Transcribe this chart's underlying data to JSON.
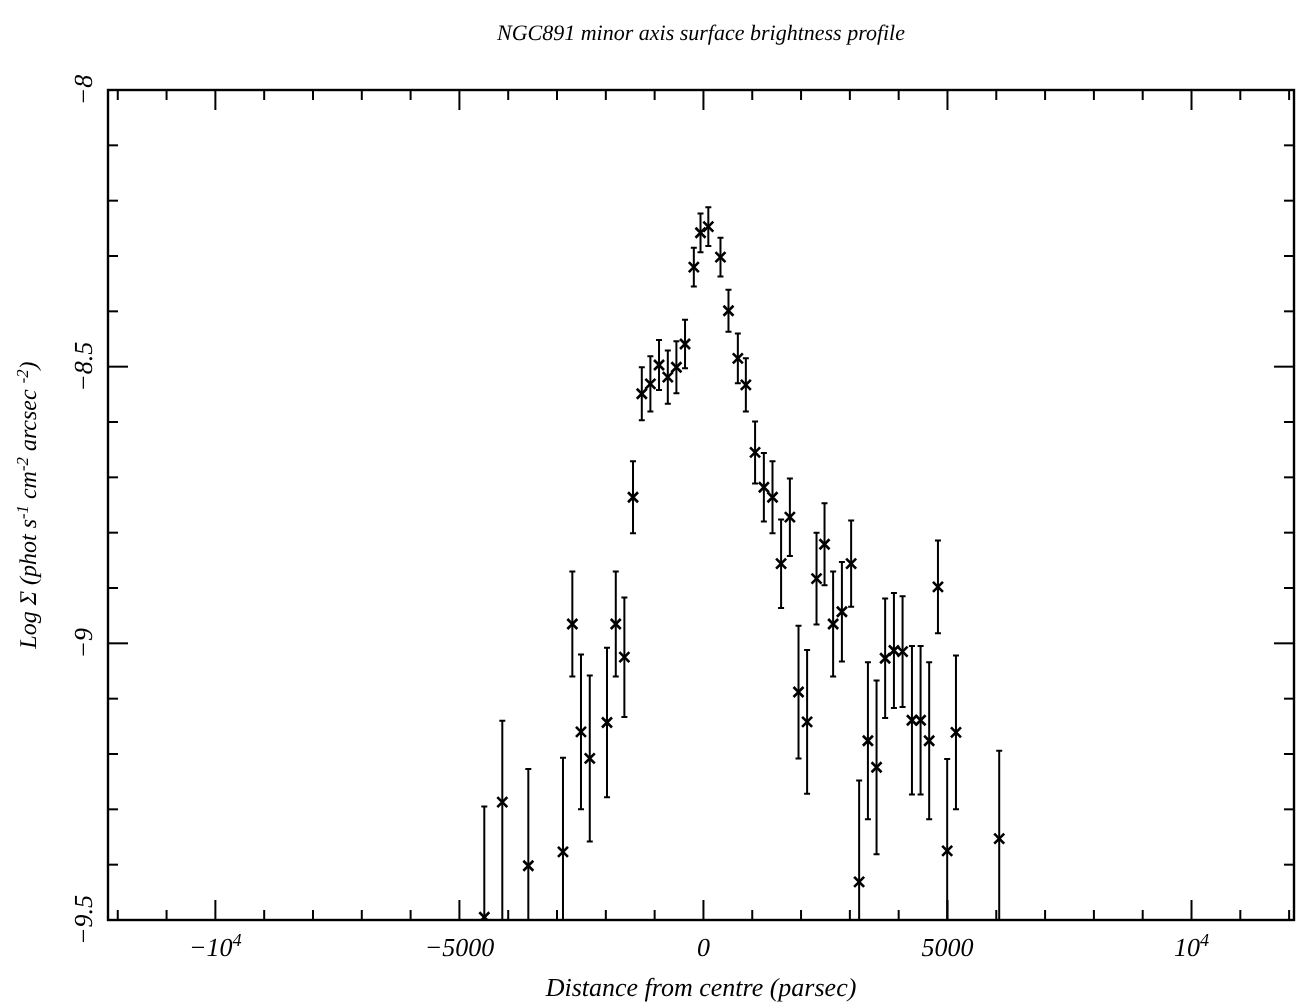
{
  "chart_data": {
    "type": "scatter",
    "title": "NGC891 minor axis surface brightness profile",
    "xlabel": "Distance from centre (parsec)",
    "ylabel": "Log Σ (phot s$^{-1}$ cm$^{-2}$ arcsec $^{-2}$)",
    "xlim": [
      -12200,
      12100
    ],
    "ylim": [
      -9.5,
      -8
    ],
    "xticks": [
      {
        "value": -12000,
        "label": null
      },
      {
        "value": -11000,
        "label": null
      },
      {
        "value": -10000,
        "label": "−10$^{4}$"
      },
      {
        "value": -9000,
        "label": null
      },
      {
        "value": -8000,
        "label": null
      },
      {
        "value": -7000,
        "label": null
      },
      {
        "value": -6000,
        "label": null
      },
      {
        "value": -5000,
        "label": "−5000"
      },
      {
        "value": -4000,
        "label": null
      },
      {
        "value": -3000,
        "label": null
      },
      {
        "value": -2000,
        "label": null
      },
      {
        "value": -1000,
        "label": null
      },
      0,
      {
        "value": 1000,
        "label": null
      },
      {
        "value": 2000,
        "label": null
      },
      {
        "value": 3000,
        "label": null
      },
      {
        "value": 4000,
        "label": null
      },
      5000,
      {
        "value": 6000,
        "label": null
      },
      {
        "value": 7000,
        "label": null
      },
      {
        "value": 8000,
        "label": null
      },
      {
        "value": 9000,
        "label": null
      },
      {
        "value": 10000,
        "label": "10$^{4}$"
      },
      {
        "value": 11000,
        "label": null
      },
      {
        "value": 12000,
        "label": null
      }
    ],
    "yticks": [
      {
        "value": -9.5,
        "label": "−9.5"
      },
      {
        "value": -9.4,
        "label": null
      },
      {
        "value": -9.3,
        "label": null
      },
      {
        "value": -9.2,
        "label": null
      },
      {
        "value": -9.1,
        "label": null
      },
      {
        "value": -9,
        "label": "−9"
      },
      {
        "value": -8.9,
        "label": null
      },
      {
        "value": -8.8,
        "label": null
      },
      {
        "value": -8.7,
        "label": null
      },
      {
        "value": -8.6,
        "label": null
      },
      {
        "value": -8.5,
        "label": "−8.5"
      },
      {
        "value": -8.4,
        "label": null
      },
      {
        "value": -8.3,
        "label": null
      },
      {
        "value": -8.2,
        "label": null
      },
      {
        "value": -8.1,
        "label": null
      },
      {
        "value": -8,
        "label": "−8"
      }
    ],
    "marker": "cross",
    "series": [
      {
        "color": "#000000",
        "x": [
          -4490,
          -4121,
          -3588,
          -2878,
          -2686,
          -2509,
          -2329,
          -1976,
          -1796,
          -1620,
          -1443,
          -1263,
          -1087,
          -910,
          -730,
          -554,
          -377,
          -197,
          -60,
          100,
          349,
          513,
          705,
          869,
          1058,
          1238,
          1415,
          1591,
          1771,
          1948,
          2124,
          2317,
          2481,
          2657,
          2837,
          3026,
          3190,
          3370,
          3547,
          3723,
          3903,
          4080,
          4272,
          4449,
          4625,
          4805,
          4994,
          5174,
          6060
        ],
        "values": [
          -9.495,
          -9.287,
          -9.402,
          -9.377,
          -8.965,
          -9.16,
          -9.208,
          -9.143,
          -8.965,
          -9.025,
          -8.736,
          -8.549,
          -8.531,
          -8.497,
          -8.519,
          -8.501,
          -8.459,
          -8.32,
          -8.258,
          -8.247,
          -8.302,
          -8.399,
          -8.485,
          -8.533,
          -8.655,
          -8.718,
          -8.736,
          -8.856,
          -8.772,
          -9.088,
          -9.142,
          -8.883,
          -8.821,
          -8.965,
          -8.943,
          -8.856,
          -9.431,
          -9.176,
          -9.224,
          -9.027,
          -9.013,
          -9.015,
          -9.139,
          -9.139,
          -9.176,
          -8.898,
          -9.375,
          -9.161,
          -9.353
        ],
        "errors": [
          [
            -9.5,
            -9.295
          ],
          [
            -9.5,
            -9.14
          ],
          [
            -9.5,
            -9.227
          ],
          [
            -9.5,
            -9.207
          ],
          0.095,
          0.14,
          0.15,
          0.135,
          0.095,
          0.108,
          0.065,
          0.048,
          0.05,
          0.045,
          0.048,
          0.047,
          0.044,
          0.035,
          0.035,
          0.035,
          0.035,
          0.038,
          0.045,
          0.048,
          0.056,
          0.062,
          0.065,
          0.08,
          0.07,
          0.12,
          0.13,
          0.083,
          0.074,
          0.095,
          0.09,
          0.078,
          [
            -9.5,
            -9.248
          ],
          0.142,
          0.157,
          0.108,
          0.104,
          0.1,
          0.134,
          0.134,
          0.142,
          0.084,
          [
            -9.5,
            -9.209
          ],
          0.139,
          [
            -9.5,
            -9.194
          ]
        ]
      }
    ]
  }
}
